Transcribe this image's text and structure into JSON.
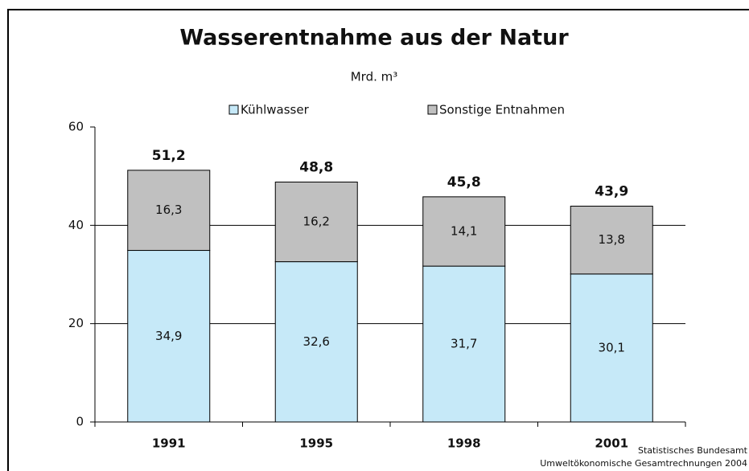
{
  "chart_data": {
    "type": "stacked_bar",
    "title": "Wasserentnahme aus der Natur",
    "subtitle": "Mrd. m³",
    "categories": [
      "1991",
      "1995",
      "1998",
      "2001"
    ],
    "series": [
      {
        "name": "Kühlwasser",
        "color": "#c6e9f8",
        "values": [
          34.9,
          32.6,
          31.7,
          30.1
        ],
        "value_labels": [
          "34,9",
          "32,6",
          "31,7",
          "30,1"
        ]
      },
      {
        "name": "Sonstige Entnahmen",
        "color": "#c0c0c0",
        "values": [
          16.3,
          16.2,
          14.1,
          13.8
        ],
        "value_labels": [
          "16,3",
          "16,2",
          "14,1",
          "13,8"
        ]
      }
    ],
    "totals": [
      51.2,
      48.8,
      45.8,
      43.9
    ],
    "total_labels": [
      "51,2",
      "48,8",
      "45,8",
      "43,9"
    ],
    "ylim": [
      0,
      60
    ],
    "yticks": [
      0,
      20,
      40,
      60
    ],
    "grid": true,
    "source": [
      "Statistisches Bundesamt",
      "Umweltökonomische Gesamtrechnungen 2004"
    ]
  }
}
